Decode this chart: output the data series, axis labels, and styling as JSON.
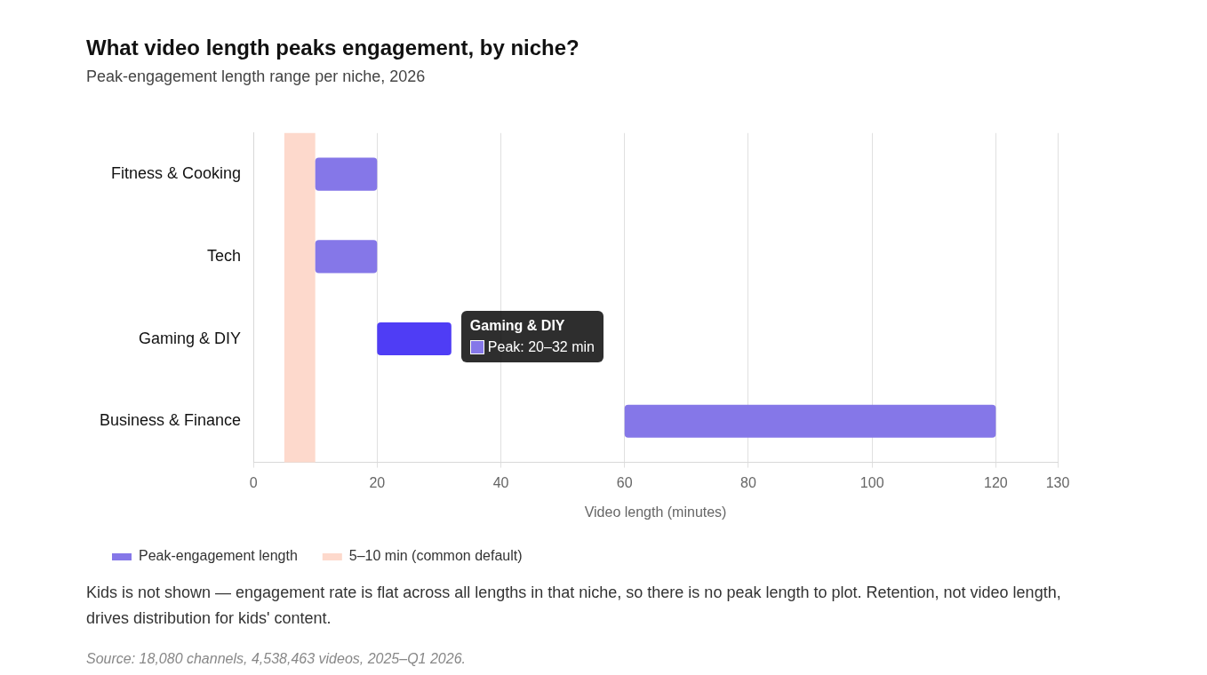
{
  "chart_data": {
    "type": "bar",
    "orientation": "horizontal",
    "title": "What video length peaks engagement, by niche?",
    "subtitle": "Peak-engagement length range per niche, 2026",
    "xlabel": "Video length (minutes)",
    "categories": [
      "Fitness & Cooking",
      "Tech",
      "Gaming & DIY",
      "Business & Finance"
    ],
    "series": [
      {
        "name": "Peak-engagement length",
        "color": "#8577e8",
        "colors": [
          "#8577e8",
          "#8577e8",
          "#4f3df5",
          "#8577e8"
        ],
        "base": [
          10,
          10,
          20,
          60
        ],
        "values": [
          10,
          10,
          12,
          60
        ]
      }
    ],
    "xlim": [
      0,
      130
    ],
    "xticks": [
      0,
      20,
      40,
      60,
      80,
      100,
      120,
      130
    ],
    "grid": "x",
    "legend": "bottom",
    "bands": [
      {
        "axis": "x",
        "from": 5,
        "to": 10,
        "label": "5–10 min (common default)",
        "color": "#fdd9cc"
      }
    ],
    "annotations": [
      {
        "text": "Gaming & DIY",
        "x": 32,
        "y": "Gaming & DIY"
      },
      {
        "text": "Peak: 20–32 min",
        "x": 32,
        "y": "Gaming & DIY"
      },
      "Kids is not shown — engagement rate is flat across all lengths in that niche, so there is no peak length to plot. Retention, not video length, drives distribution for kids' content.",
      "Source: 18,080 channels, 4,538,463 videos, 2025–Q1 2026."
    ]
  }
}
